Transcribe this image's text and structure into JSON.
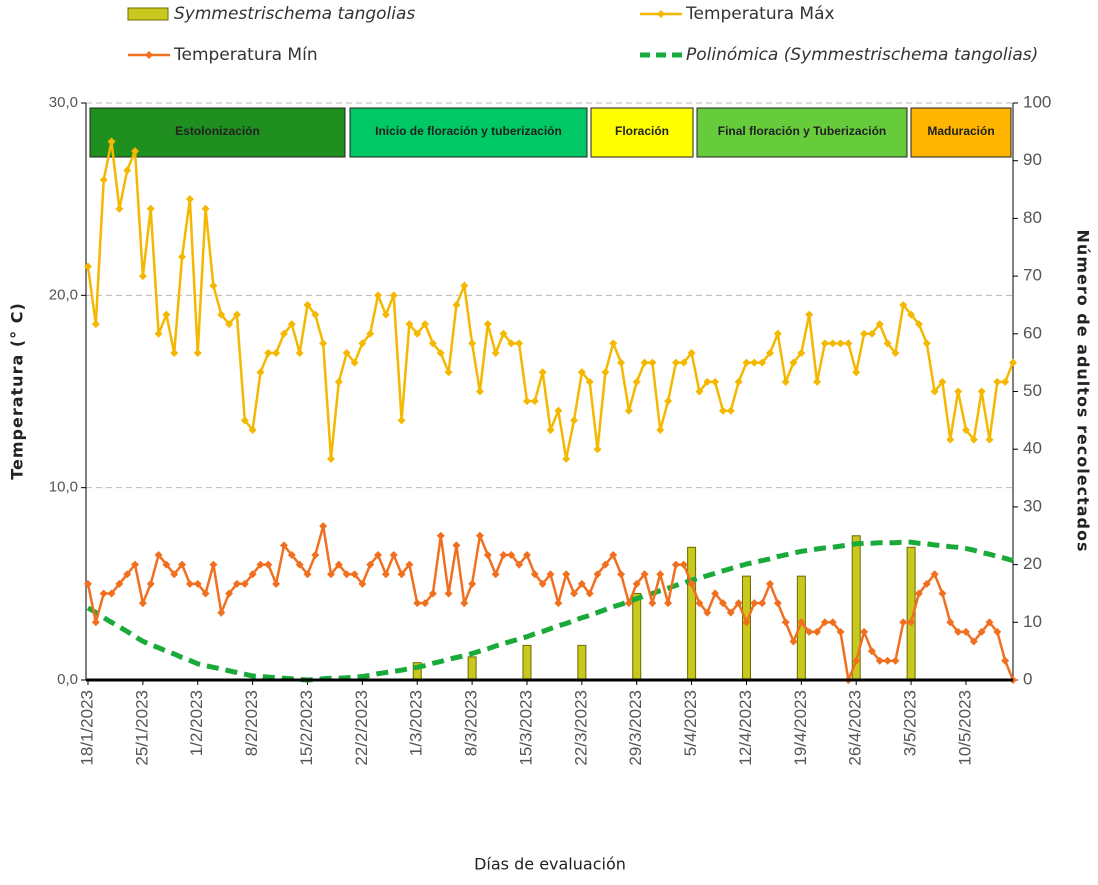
{
  "chart_data": {
    "type": "combo",
    "x_title": "Días de evaluación",
    "y_title": "Temperatura  (° C)",
    "y2_title": "Número  de adultos recolectados",
    "categories": [
      "18/1/2023",
      null,
      null,
      null,
      null,
      null,
      null,
      "25/1/2023",
      null,
      null,
      null,
      null,
      null,
      null,
      "1/2/2023",
      null,
      null,
      null,
      null,
      null,
      null,
      "8/2/2023",
      null,
      null,
      null,
      null,
      null,
      null,
      "15/2/2023",
      null,
      null,
      null,
      null,
      null,
      null,
      "22/2/2023",
      null,
      null,
      null,
      null,
      null,
      null,
      "1/3/2023",
      null,
      null,
      null,
      null,
      null,
      null,
      "8/3/2023",
      null,
      null,
      null,
      null,
      null,
      null,
      "15/3/2023",
      null,
      null,
      null,
      null,
      null,
      null,
      "22/3/2023",
      null,
      null,
      null,
      null,
      null,
      null,
      "29/3/2023",
      null,
      null,
      null,
      null,
      null,
      null,
      "5/4/2023",
      null,
      null,
      null,
      null,
      null,
      null,
      "12/4/2023",
      null,
      null,
      null,
      null,
      null,
      null,
      "19/4/2023",
      null,
      null,
      null,
      null,
      null,
      null,
      "26/4/2023",
      null,
      null,
      null,
      null,
      null,
      null,
      "3/5/2023",
      null,
      null,
      null,
      null,
      null,
      null,
      "10/5/2023",
      null,
      null,
      null,
      null,
      null,
      null
    ],
    "ylim": [
      0,
      30
    ],
    "yticks": [
      {
        "value": 0,
        "label": "0,0"
      },
      {
        "value": 10,
        "label": "10,0"
      },
      {
        "value": 20,
        "label": "20,0"
      },
      {
        "value": 30,
        "label": "30,0"
      }
    ],
    "y2lim": [
      0,
      100
    ],
    "y2ticks": [
      0,
      10,
      20,
      30,
      40,
      50,
      60,
      70,
      80,
      90,
      100
    ],
    "grid": true,
    "series": [
      {
        "name": "Symmestrischema tangolias",
        "type": "bar",
        "axis": "y2",
        "color": "#c8c81e",
        "values": [
          null,
          null,
          null,
          null,
          null,
          null,
          null,
          null,
          null,
          null,
          null,
          null,
          null,
          null,
          null,
          null,
          null,
          null,
          null,
          null,
          null,
          null,
          null,
          null,
          null,
          null,
          null,
          null,
          null,
          null,
          null,
          null,
          null,
          null,
          null,
          0.3,
          null,
          null,
          null,
          null,
          null,
          null,
          3,
          null,
          null,
          null,
          null,
          null,
          null,
          4,
          null,
          null,
          null,
          null,
          null,
          null,
          6,
          null,
          null,
          null,
          null,
          null,
          null,
          6,
          null,
          null,
          null,
          null,
          null,
          null,
          15,
          null,
          null,
          null,
          null,
          null,
          null,
          23,
          null,
          null,
          null,
          null,
          null,
          null,
          18,
          null,
          null,
          null,
          null,
          null,
          null,
          18,
          null,
          null,
          null,
          null,
          null,
          null,
          25,
          null,
          null,
          null,
          null,
          null,
          null,
          23,
          null,
          null,
          null,
          null,
          null,
          null,
          null,
          null,
          null,
          null,
          null,
          null,
          null
        ]
      },
      {
        "name": "Temperatura Máx",
        "type": "line",
        "color": "#f5b800",
        "values": [
          21.5,
          18.5,
          26,
          28,
          24.5,
          26.5,
          27.5,
          21,
          24.5,
          18,
          19,
          17,
          22,
          25,
          17,
          24.5,
          20.5,
          19,
          18.5,
          19,
          13.5,
          13,
          16,
          17,
          17,
          18,
          18.5,
          17,
          19.5,
          19,
          17.5,
          11.5,
          15.5,
          17,
          16.5,
          17.5,
          18,
          20,
          19,
          20,
          13.5,
          18.5,
          18,
          18.5,
          17.5,
          17,
          16,
          19.5,
          20.5,
          17.5,
          15,
          18.5,
          17,
          18,
          17.5,
          17.5,
          14.5,
          14.5,
          16,
          13,
          14,
          11.5,
          13.5,
          16,
          15.5,
          12,
          16,
          17.5,
          16.5,
          14,
          15.5,
          16.5,
          16.5,
          13,
          14.5,
          16.5,
          16.5,
          17,
          15,
          15.5,
          15.5,
          14,
          14,
          15.5,
          16.5,
          16.5,
          16.5,
          17,
          18,
          15.5,
          16.5,
          17,
          19,
          15.5,
          17.5,
          17.5,
          17.5,
          17.5,
          16,
          18,
          18,
          18.5,
          17.5,
          17,
          19.5,
          19,
          18.5,
          17.5,
          15,
          15.5,
          12.5,
          15,
          13,
          12.5,
          15,
          12.5,
          15.5,
          15.5,
          16.5
        ]
      },
      {
        "name": "Temperatura Mín",
        "type": "line",
        "color": "#f07020",
        "values": [
          5,
          3,
          4.5,
          4.5,
          5,
          5.5,
          6,
          4,
          5,
          6.5,
          6,
          5.5,
          6,
          5,
          5,
          4.5,
          6,
          3.5,
          4.5,
          5,
          5,
          5.5,
          6,
          6,
          5,
          7,
          6.5,
          6,
          5.5,
          6.5,
          8,
          5.5,
          6,
          5.5,
          5.5,
          5,
          6,
          6.5,
          5.5,
          6.5,
          5.5,
          6,
          4,
          4,
          4.5,
          7.5,
          4.5,
          7,
          4,
          5,
          7.5,
          6.5,
          5.5,
          6.5,
          6.5,
          6,
          6.5,
          5.5,
          5,
          5.5,
          4,
          5.5,
          4.5,
          5,
          4.5,
          5.5,
          6,
          6.5,
          5.5,
          4,
          5,
          5.5,
          4,
          5.5,
          4,
          6,
          6,
          5,
          4,
          3.5,
          4.5,
          4,
          3.5,
          4,
          3,
          4,
          4,
          5,
          4,
          3,
          2,
          3,
          2.5,
          2.5,
          3,
          3,
          2.5,
          0,
          1,
          2.5,
          1.5,
          1,
          1,
          1,
          3,
          3,
          4.5,
          5,
          5.5,
          4.5,
          3,
          2.5,
          2.5,
          2,
          2.5,
          3,
          2.5,
          1,
          0
        ]
      },
      {
        "name": "Polinómica (Symmestrischema tangolias)",
        "type": "trend",
        "axis": "y2",
        "color": "#1aaa3a",
        "values": [
          12.5,
          11.7,
          10.8,
          10.0,
          9.2,
          8.4,
          7.5,
          6.7,
          6.1,
          5.6,
          5.0,
          4.5,
          3.9,
          3.4,
          2.8,
          2.5,
          2.2,
          1.9,
          1.6,
          1.3,
          1.0,
          0.7,
          0.6,
          0.5,
          0.4,
          0.3,
          0.2,
          0.1,
          0,
          0.1,
          0.2,
          0.3,
          0.3,
          0.4,
          0.5,
          0.6,
          0.8,
          1.1,
          1.3,
          1.5,
          1.7,
          2.0,
          2.2,
          2.5,
          2.9,
          3.2,
          3.6,
          3.9,
          4.2,
          4.6,
          5.0,
          5.4,
          5.9,
          6.3,
          6.7,
          7.1,
          7.5,
          8.0,
          8.4,
          8.9,
          9.4,
          9.8,
          10.3,
          10.8,
          11.2,
          11.7,
          12.2,
          12.7,
          13.1,
          13.6,
          14.1,
          14.6,
          15.0,
          15.5,
          15.9,
          16.4,
          16.8,
          17.3,
          17.7,
          18.1,
          18.5,
          18.9,
          19.3,
          19.7,
          20.1,
          20.4,
          20.7,
          21.0,
          21.4,
          21.7,
          22.0,
          22.3,
          22.5,
          22.7,
          22.9,
          23.0,
          23.2,
          23.4,
          23.6,
          23.7,
          23.7,
          23.8,
          23.8,
          23.8,
          23.9,
          23.9,
          23.7,
          23.6,
          23.4,
          23.3,
          23.1,
          23.0,
          22.8,
          22.5,
          22.1,
          21.8,
          21.4,
          21.1,
          20.7
        ]
      }
    ],
    "annotations": [
      {
        "text": "Estolonización",
        "color": "#1f8f1f"
      },
      {
        "text": "Inicio de floración y tuberización",
        "color": "#00c864"
      },
      {
        "text": "Floración",
        "color": "#ffff00"
      },
      {
        "text": "Final floración y Tuberización",
        "color": "#66cc3c"
      },
      {
        "text": "Maduración",
        "color": "#ffb400"
      }
    ]
  }
}
